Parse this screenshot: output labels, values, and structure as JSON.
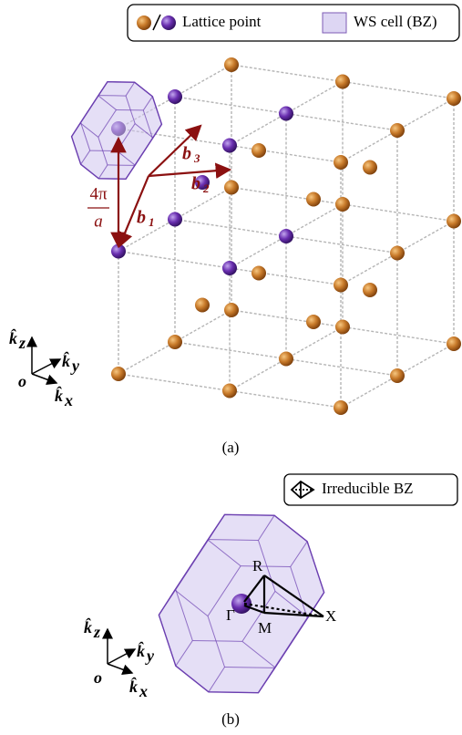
{
  "legend_a": {
    "lattice_point": "Lattice point",
    "ws_cell": "WS cell (BZ)"
  },
  "vectors": {
    "b1": {
      "label": "b",
      "subscript": "1"
    },
    "b2": {
      "label": "b",
      "subscript": "2"
    },
    "b3": {
      "label": "b",
      "subscript": "3"
    },
    "length": {
      "numerator": "4π",
      "denominator": "a"
    }
  },
  "axes": {
    "kz": {
      "label": "k̂",
      "subscript": "z"
    },
    "ky": {
      "label": "k̂",
      "subscript": "y"
    },
    "kx": {
      "label": "k̂",
      "subscript": "x"
    },
    "origin": "o"
  },
  "caption_a": "(a)",
  "legend_b": {
    "irreducible": "Irreducible BZ"
  },
  "points": {
    "gamma": "Γ",
    "r": "R",
    "m": "M",
    "x": "X"
  },
  "caption_b": "(b)"
}
